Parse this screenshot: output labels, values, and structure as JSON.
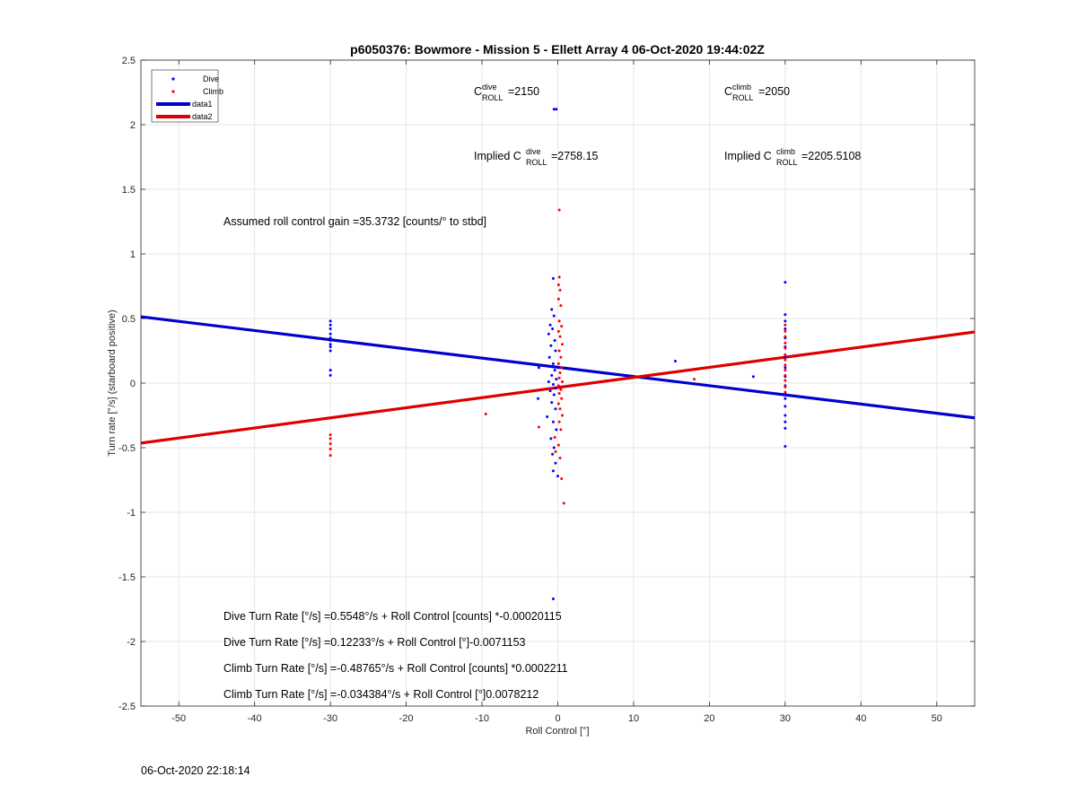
{
  "footer_timestamp": "06-Oct-2020 22:18:14",
  "chart_data": {
    "type": "scatter",
    "title": "p6050376: Bowmore - Mission 5 - Ellett Array 4 06-Oct-2020 19:44:02Z",
    "xlabel": "Roll Control [°]",
    "ylabel": "Turn rate [°/s] (starboard positive)",
    "xlim": [
      -55,
      55
    ],
    "ylim": [
      -2.5,
      2.5
    ],
    "xticks": [
      -50,
      -40,
      -30,
      -20,
      -10,
      0,
      10,
      20,
      30,
      40,
      50
    ],
    "yticks": [
      -2.5,
      -2,
      -1.5,
      -1,
      -0.5,
      0,
      0.5,
      1,
      1.5,
      2,
      2.5
    ],
    "grid": true,
    "legend_position": "top-left",
    "legend": [
      "Dive",
      "Climb",
      "data1",
      "data2"
    ],
    "colors": {
      "dive": "#0000ff",
      "climb": "#ff0000",
      "data1": "#0000cc",
      "data2": "#dd0000"
    },
    "lines": [
      {
        "name": "data1",
        "x": [
          -55,
          55
        ],
        "y": [
          0.5135,
          -0.2691
        ]
      },
      {
        "name": "data2",
        "x": [
          -55,
          55
        ],
        "y": [
          -0.4645,
          0.3957
        ]
      }
    ],
    "series": [
      {
        "name": "Dive",
        "points": [
          [
            -30,
            0.48
          ],
          [
            -30,
            0.45
          ],
          [
            -30,
            0.42
          ],
          [
            -30,
            0.38
          ],
          [
            -30,
            0.35
          ],
          [
            -30,
            0.33
          ],
          [
            -30,
            0.3
          ],
          [
            -30,
            0.28
          ],
          [
            -30,
            0.25
          ],
          [
            -30,
            0.1
          ],
          [
            -30,
            0.06
          ],
          [
            -0.5,
            2.12
          ],
          [
            -0.2,
            2.12
          ],
          [
            -0.6,
            0.81
          ],
          [
            -0.8,
            0.57
          ],
          [
            -0.5,
            0.52
          ],
          [
            -1,
            0.45
          ],
          [
            -0.7,
            0.42
          ],
          [
            -1.2,
            0.38
          ],
          [
            -0.4,
            0.33
          ],
          [
            -0.9,
            0.29
          ],
          [
            -0.3,
            0.25
          ],
          [
            -1.1,
            0.2
          ],
          [
            -0.6,
            0.15
          ],
          [
            -2.5,
            0.12
          ],
          [
            -0.4,
            0.1
          ],
          [
            -0.8,
            0.06
          ],
          [
            -0.2,
            0.03
          ],
          [
            -1.2,
            0.01
          ],
          [
            -0.6,
            -0.01
          ],
          [
            -0.3,
            -0.04
          ],
          [
            -1,
            -0.06
          ],
          [
            -0.5,
            -0.09
          ],
          [
            -2.6,
            -0.12
          ],
          [
            -0.8,
            -0.15
          ],
          [
            -0.3,
            -0.2
          ],
          [
            -1.4,
            -0.26
          ],
          [
            -0.6,
            -0.3
          ],
          [
            -0.2,
            -0.36
          ],
          [
            -0.9,
            -0.43
          ],
          [
            -0.5,
            -0.5
          ],
          [
            -0.7,
            -0.55
          ],
          [
            -0.3,
            -0.62
          ],
          [
            -0.6,
            -0.68
          ],
          [
            0,
            -0.72
          ],
          [
            -0.6,
            -1.67
          ],
          [
            15.5,
            0.17
          ],
          [
            25.8,
            0.05
          ],
          [
            30,
            0.78
          ],
          [
            30,
            0.53
          ],
          [
            30,
            0.48
          ],
          [
            30,
            0.42
          ],
          [
            30,
            0.35
          ],
          [
            30,
            0.28
          ],
          [
            30,
            0.2
          ],
          [
            30,
            0.12
          ],
          [
            30,
            0.05
          ],
          [
            30,
            -0.02
          ],
          [
            30,
            -0.08
          ],
          [
            30,
            -0.12
          ],
          [
            30,
            -0.18
          ],
          [
            30,
            -0.25
          ],
          [
            30,
            -0.3
          ],
          [
            30,
            -0.35
          ],
          [
            30,
            -0.49
          ]
        ]
      },
      {
        "name": "Climb",
        "points": [
          [
            -30,
            -0.4
          ],
          [
            -30,
            -0.43
          ],
          [
            -30,
            -0.47
          ],
          [
            -30,
            -0.51
          ],
          [
            -30,
            -0.56
          ],
          [
            -9.5,
            -0.24
          ],
          [
            -2.5,
            -0.34
          ],
          [
            0.2,
            1.34
          ],
          [
            0.2,
            0.82
          ],
          [
            0.1,
            0.76
          ],
          [
            0.3,
            0.72
          ],
          [
            0.1,
            0.65
          ],
          [
            0.4,
            0.6
          ],
          [
            0.2,
            0.48
          ],
          [
            0.5,
            0.44
          ],
          [
            0.1,
            0.4
          ],
          [
            0.3,
            0.36
          ],
          [
            0.6,
            0.3
          ],
          [
            0.2,
            0.25
          ],
          [
            0.4,
            0.2
          ],
          [
            0.1,
            0.15
          ],
          [
            0.5,
            0.12
          ],
          [
            0.3,
            0.08
          ],
          [
            0.2,
            0.04
          ],
          [
            0.6,
            0.01
          ],
          [
            0.1,
            -0.02
          ],
          [
            0.4,
            -0.05
          ],
          [
            0.2,
            -0.08
          ],
          [
            0.5,
            -0.12
          ],
          [
            0.1,
            -0.16
          ],
          [
            0.3,
            -0.2
          ],
          [
            0.6,
            -0.25
          ],
          [
            0.2,
            -0.3
          ],
          [
            0.4,
            -0.36
          ],
          [
            -0.4,
            -0.42
          ],
          [
            0.1,
            -0.48
          ],
          [
            -0.3,
            -0.53
          ],
          [
            0.3,
            -0.58
          ],
          [
            0.5,
            -0.74
          ],
          [
            0.8,
            -0.93
          ],
          [
            18,
            0.03
          ],
          [
            30,
            0.45
          ],
          [
            30,
            0.4
          ],
          [
            30,
            0.36
          ],
          [
            30,
            0.31
          ],
          [
            30,
            0.27
          ],
          [
            30,
            0.22
          ],
          [
            30,
            0.18
          ],
          [
            30,
            0.14
          ],
          [
            30,
            0.1
          ],
          [
            30,
            0.06
          ],
          [
            30,
            0.02
          ],
          [
            30,
            -0.03
          ],
          [
            30,
            -0.07
          ]
        ]
      }
    ],
    "annotations": {
      "cdive_label": "C",
      "cdive_sup": "dive",
      "cdive_sub": "ROLL",
      "cdive_value": "=2150",
      "cclimb_label": "C",
      "cclimb_sup": "climb",
      "cclimb_sub": "ROLL",
      "cclimb_value": "=2050",
      "implied_dive_prefix": "Implied C",
      "implied_dive_sup": "dive",
      "implied_dive_sub": "ROLL",
      "implied_dive_value": "=2758.15",
      "implied_climb_prefix": "Implied C",
      "implied_climb_sup": "climb",
      "implied_climb_sub": "ROLL",
      "implied_climb_value": "=2205.5108",
      "gain": "Assumed roll control gain =35.3732 [counts/° to stbd]",
      "eq1": "Dive Turn Rate [°/s] =0.5548°/s + Roll Control [counts] *-0.00020115",
      "eq2": "Dive Turn Rate [°/s] =0.12233°/s + Roll Control [°]-0.0071153",
      "eq3": "Climb Turn Rate [°/s] =-0.48765°/s + Roll Control [counts] *0.0002211",
      "eq4": "Climb Turn Rate [°/s] =-0.034384°/s + Roll Control [°]0.0078212"
    }
  }
}
